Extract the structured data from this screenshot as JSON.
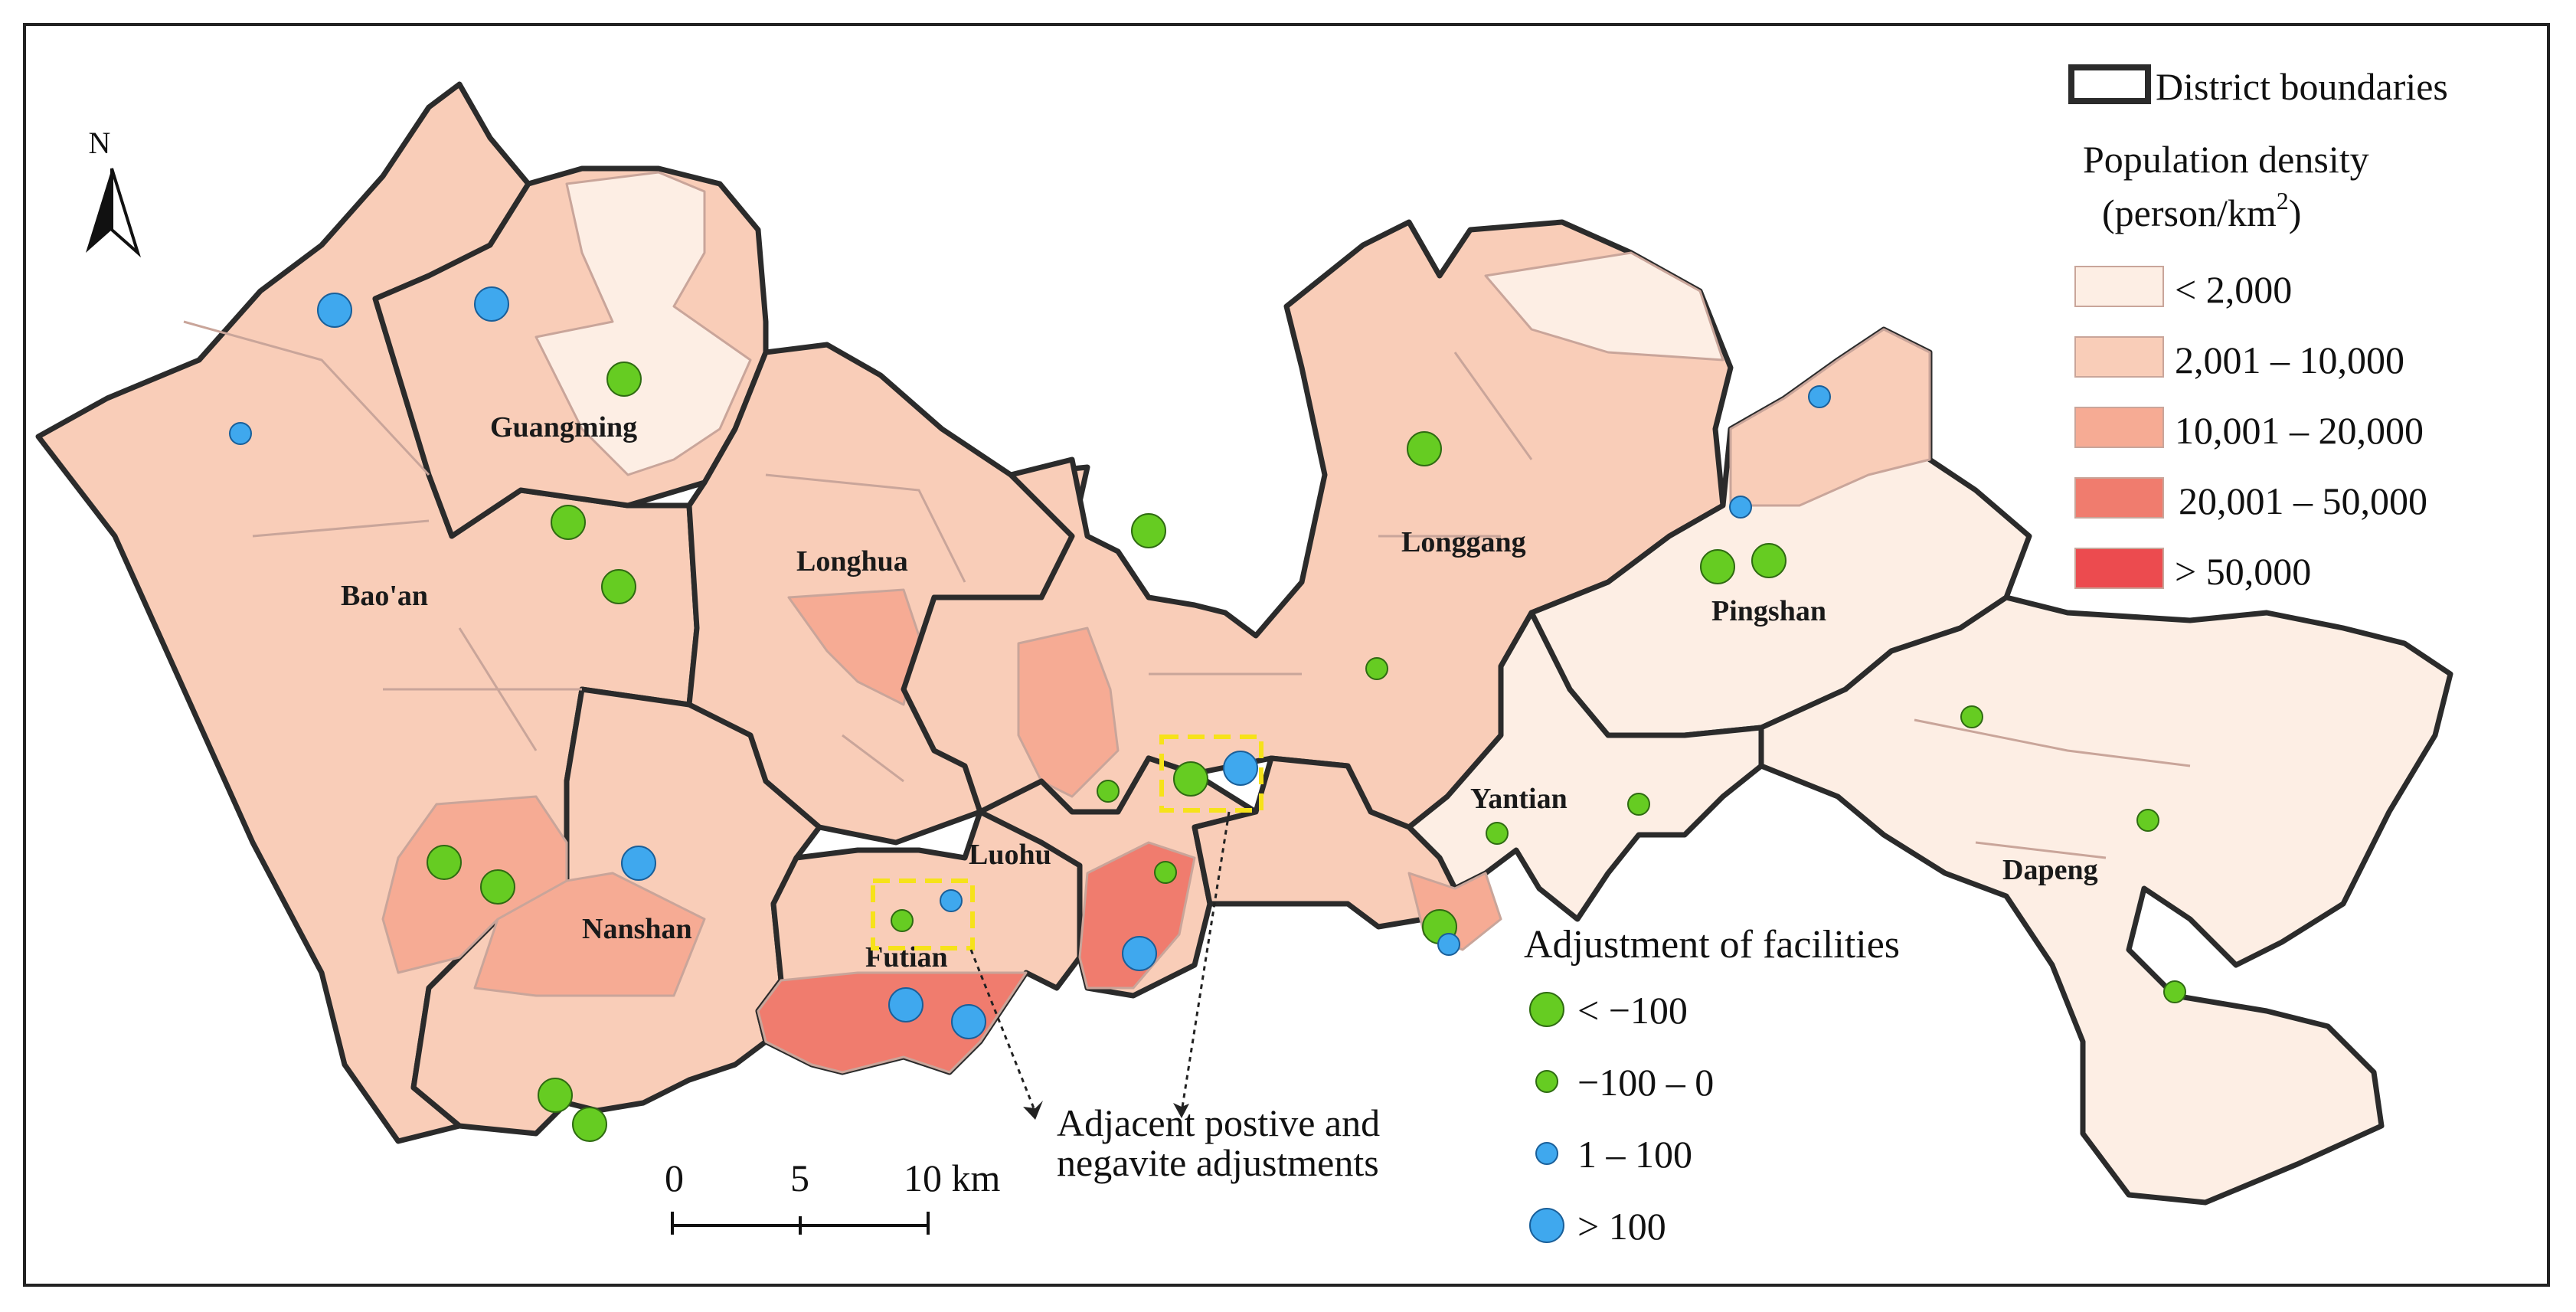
{
  "colors": {
    "bg": "#ffffff",
    "boundary": "#2b2b2b",
    "subdivision": "#c9a59a",
    "density": [
      "#fdeee4",
      "#f9cdb8",
      "#f6ab94",
      "#f07c6e",
      "#ec4b4f"
    ],
    "negative": "#66cc22",
    "positive": "#3fa8ee",
    "highlight_box": "#f6e21a"
  },
  "north_arrow": {
    "label": "N"
  },
  "districts": [
    {
      "name": "Guangming"
    },
    {
      "name": "Bao'an"
    },
    {
      "name": "Longhua"
    },
    {
      "name": "Longgang"
    },
    {
      "name": "Pingshan"
    },
    {
      "name": "Nanshan"
    },
    {
      "name": "Luohu"
    },
    {
      "name": "Futian"
    },
    {
      "name": "Yantian"
    },
    {
      "name": "Dapeng"
    }
  ],
  "legend": {
    "boundary_label": "District boundaries",
    "density_title_line1": "Population density",
    "density_title_line2": "(person/km",
    "density_title_sup": "2",
    "density_title_close": ")",
    "density_classes": [
      "< 2,000",
      "2,001 – 10,000",
      "10,001 – 20,000",
      "20,001 – 50,000",
      "> 50,000"
    ],
    "facility_title": "Adjustment of facilities",
    "facility_classes": [
      "< −100",
      "−100 – 0",
      "1 – 100",
      "> 100"
    ]
  },
  "scale_bar": {
    "ticks": [
      "0",
      "5",
      "10 km"
    ]
  },
  "annotation": {
    "line1": "Adjacent postive and",
    "line2": "negavite adjustments"
  }
}
